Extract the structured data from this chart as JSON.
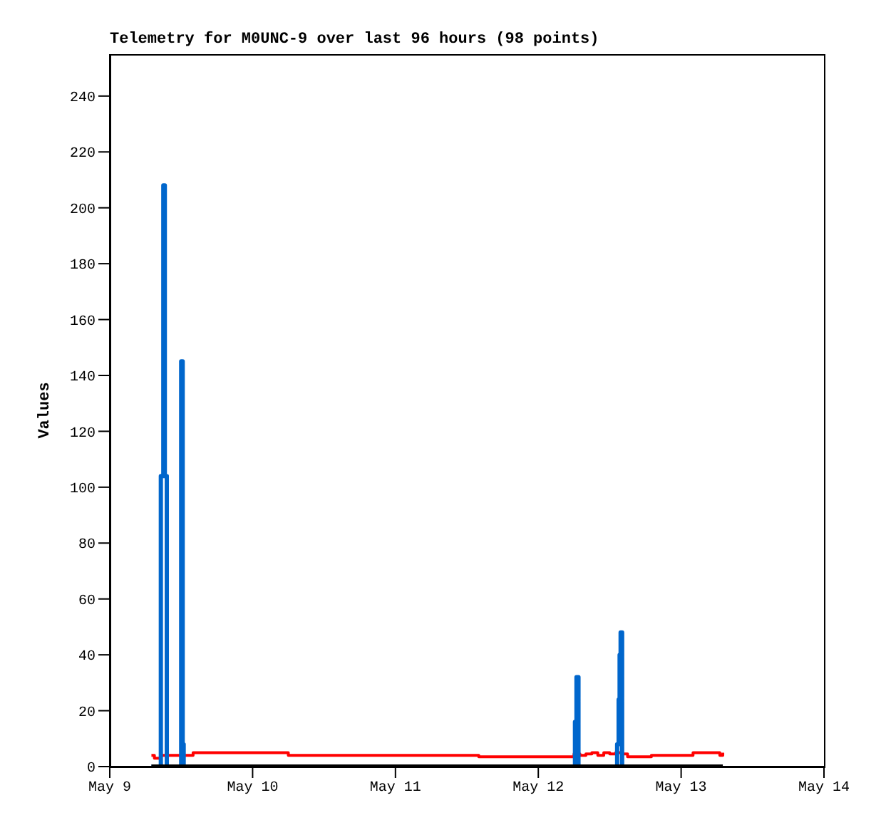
{
  "chart_data": {
    "type": "line",
    "title": "Telemetry for M0UNC-9 over last 96 hours (98 points)",
    "ylabel": "Values",
    "xlim": [
      "--05-09",
      "--05-14"
    ],
    "xticks": [
      {
        "value": "--05-09",
        "label": "May 9"
      },
      {
        "value": "--05-10",
        "label": "May 10"
      },
      {
        "value": "--05-11",
        "label": "May 11"
      },
      {
        "value": "--05-12",
        "label": "May 12"
      },
      {
        "value": "--05-13",
        "label": "May 13"
      },
      {
        "value": "--05-14",
        "label": "May 14"
      }
    ],
    "ylim": [
      0,
      255
    ],
    "yticks": [
      0,
      20,
      40,
      60,
      80,
      100,
      120,
      140,
      160,
      180,
      200,
      220,
      240
    ],
    "marker": "none",
    "line_style": "solid",
    "series": [
      {
        "type": "step",
        "color": "#ff0000",
        "x": [
          "--05-09T07:00",
          "--05-09T07:30",
          "--05-09T08:30",
          "--05-09T14:00",
          "--05-10T06:00",
          "--05-11T14:00",
          "--05-12T06:00",
          "--05-12T07:00",
          "--05-12T08:00",
          "--05-12T09:00",
          "--05-12T10:00",
          "--05-12T11:00",
          "--05-12T12:00",
          "--05-12T13:00",
          "--05-12T14:00",
          "--05-12T15:00",
          "--05-12T19:00",
          "--05-13T02:00",
          "--05-13T06:30",
          "--05-13T07:00"
        ],
        "values": [
          4,
          3,
          4,
          5,
          4,
          3.5,
          4.5,
          4,
          4.5,
          5,
          4,
          5,
          4.5,
          5,
          4.5,
          3.5,
          4,
          5,
          4,
          5
        ]
      },
      {
        "type": "step",
        "color": "#0066cc",
        "x": [
          "--05-09T07:00",
          "--05-09T08:35",
          "--05-09T09:00",
          "--05-09T09:15",
          "--05-09T09:35",
          "--05-09T12:00",
          "--05-09T12:15",
          "--05-09T12:25",
          "--05-12T06:10",
          "--05-12T06:25",
          "--05-12T06:45",
          "--05-12T13:15",
          "--05-12T13:30",
          "--05-12T13:40",
          "--05-12T13:50",
          "--05-12T14:05",
          "--05-13T07:00"
        ],
        "values": [
          0,
          104,
          208,
          104,
          0,
          145,
          8,
          0,
          16,
          32,
          0,
          8,
          24,
          40,
          48,
          0,
          0
        ]
      },
      {
        "color": "#000000",
        "x": [
          "--05-09T07:00",
          "--05-13T07:00"
        ],
        "values": [
          0,
          0
        ]
      }
    ]
  }
}
